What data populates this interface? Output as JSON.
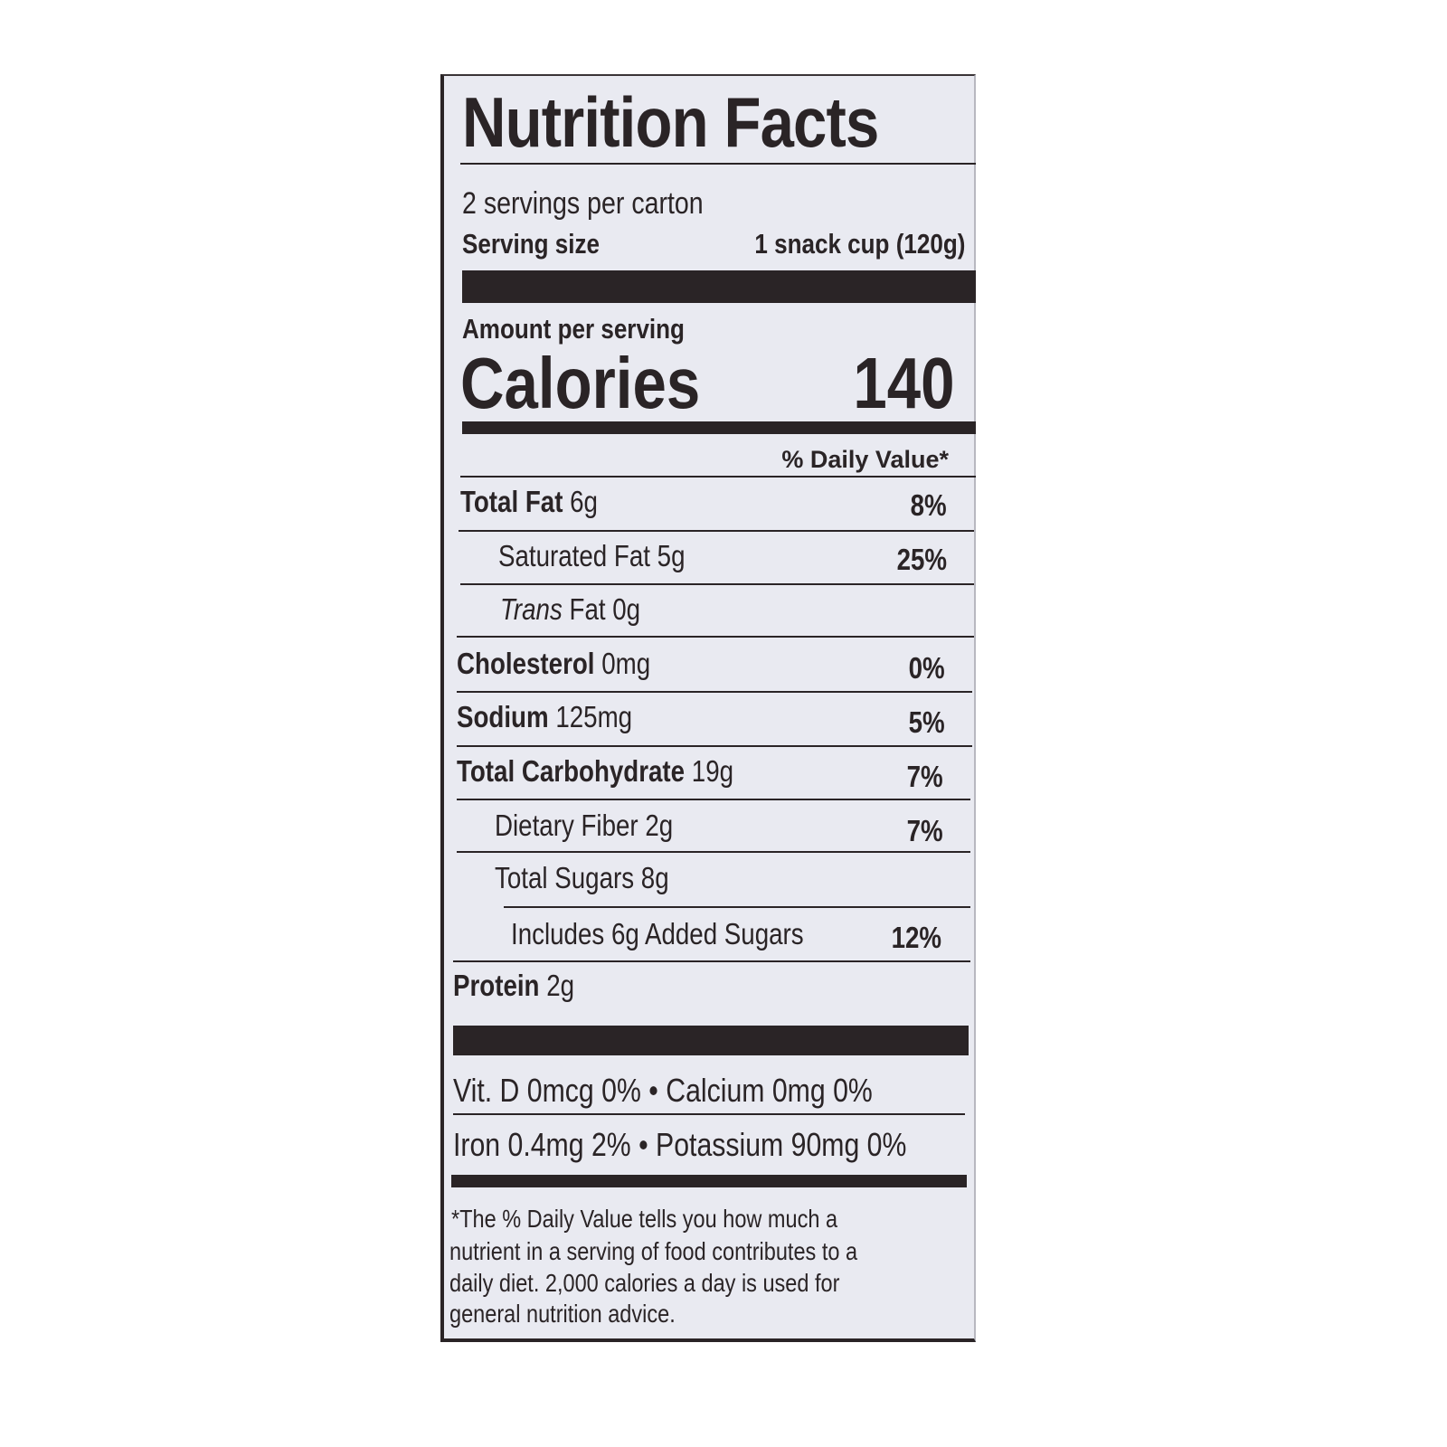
{
  "title": "Nutrition Facts",
  "servings_per_container": "2 servings per carton",
  "serving_size": {
    "label": "Serving size",
    "value": "1 snack cup (120g)"
  },
  "amount_per_serving": "Amount per serving",
  "calories": {
    "label": "Calories",
    "value": "140"
  },
  "daily_value_header": "% Daily Value*",
  "nutrients": [
    {
      "name": "Total Fat",
      "amount": "6g",
      "dv": "8%"
    },
    {
      "name": "Saturated Fat",
      "amount": "5g",
      "dv": "25%"
    },
    {
      "name": "Trans",
      "name_suffix": "Fat",
      "amount": "0g",
      "dv": ""
    },
    {
      "name": "Cholesterol",
      "amount": "0mg",
      "dv": "0%"
    },
    {
      "name": "Sodium",
      "amount": "125mg",
      "dv": "5%"
    },
    {
      "name": "Total Carbohydrate",
      "amount": "19g",
      "dv": "7%"
    },
    {
      "name": "Dietary Fiber",
      "amount": "2g",
      "dv": "7%"
    },
    {
      "name": "Total Sugars",
      "amount": "8g",
      "dv": ""
    },
    {
      "name": "Includes 6g Added Sugars",
      "amount": "",
      "dv": "12%"
    },
    {
      "name": "Protein",
      "amount": "2g",
      "dv": ""
    }
  ],
  "micronutrients": [
    "Vit. D 0mcg 0% • Calcium 0mg  0%",
    "Iron 0.4mg 2% • Potassium 90mg 0%"
  ],
  "footnote": [
    "*The % Daily Value tells you how much a",
    "nutrient in a serving of food contributes to a",
    "daily diet. 2,000 calories a day is used for",
    "general nutrition advice."
  ]
}
